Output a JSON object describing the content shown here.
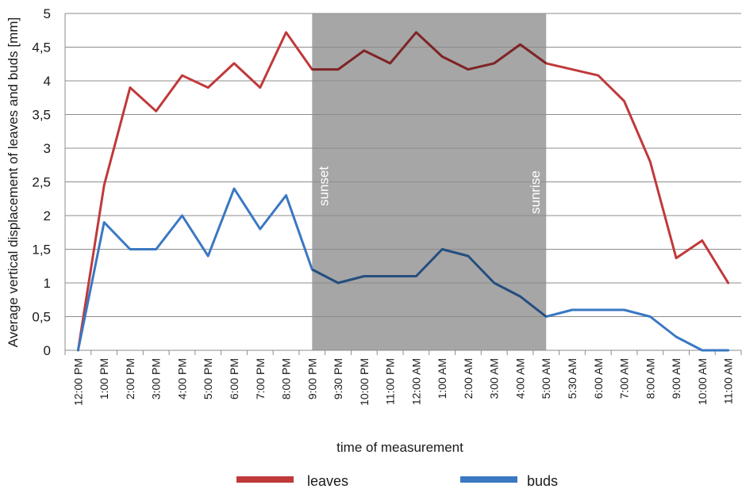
{
  "chart_data": {
    "type": "line",
    "title": "",
    "xlabel": "time of measurement",
    "ylabel": "Average vertical displacement of leaves and buds [mm]",
    "ylim": [
      0,
      5
    ],
    "yticks": [
      "0",
      "0,5",
      "1",
      "1,5",
      "2",
      "2,5",
      "3",
      "3,5",
      "4",
      "4,5",
      "5"
    ],
    "categories": [
      "12:00 PM",
      "1:00 PM",
      "2:00 PM",
      "3:00 PM",
      "4:00 PM",
      "5:00 PM",
      "6:00 PM",
      "7:00 PM",
      "8:00 PM",
      "9:00 PM",
      "9:30 PM",
      "10:00 PM",
      "11:00 PM",
      "12:00 AM",
      "1:00 AM",
      "2:00 AM",
      "3:00 AM",
      "4:00 AM",
      "5:00 AM",
      "5:30 AM",
      "6:00 AM",
      "7:00 AM",
      "8:00 AM",
      "9:00 AM",
      "10:00 AM",
      "11:00 AM"
    ],
    "series": [
      {
        "name": "leaves",
        "color": "#c0393b",
        "values": [
          0,
          2.45,
          3.9,
          3.55,
          4.08,
          3.9,
          4.26,
          3.9,
          4.72,
          4.17,
          4.17,
          4.45,
          4.26,
          4.72,
          4.36,
          4.17,
          4.26,
          4.54,
          4.26,
          4.17,
          4.08,
          3.7,
          2.8,
          1.37,
          1.63,
          1.0
        ]
      },
      {
        "name": "buds",
        "color": "#3a78c2",
        "values": [
          0,
          1.9,
          1.5,
          1.5,
          2.0,
          1.4,
          2.4,
          1.8,
          2.3,
          1.2,
          1.0,
          1.1,
          1.1,
          1.1,
          1.5,
          1.4,
          1.0,
          0.8,
          0.5,
          0.6,
          0.6,
          0.6,
          0.5,
          0.2,
          0.0,
          0.0
        ]
      }
    ],
    "shaded_region": {
      "from": "9:00 PM",
      "to": "5:00 AM",
      "color": "#a6a6a6"
    },
    "annotations": {
      "start": "sunset",
      "end": "sunrise"
    },
    "grid": true,
    "legend_position": "bottom"
  }
}
